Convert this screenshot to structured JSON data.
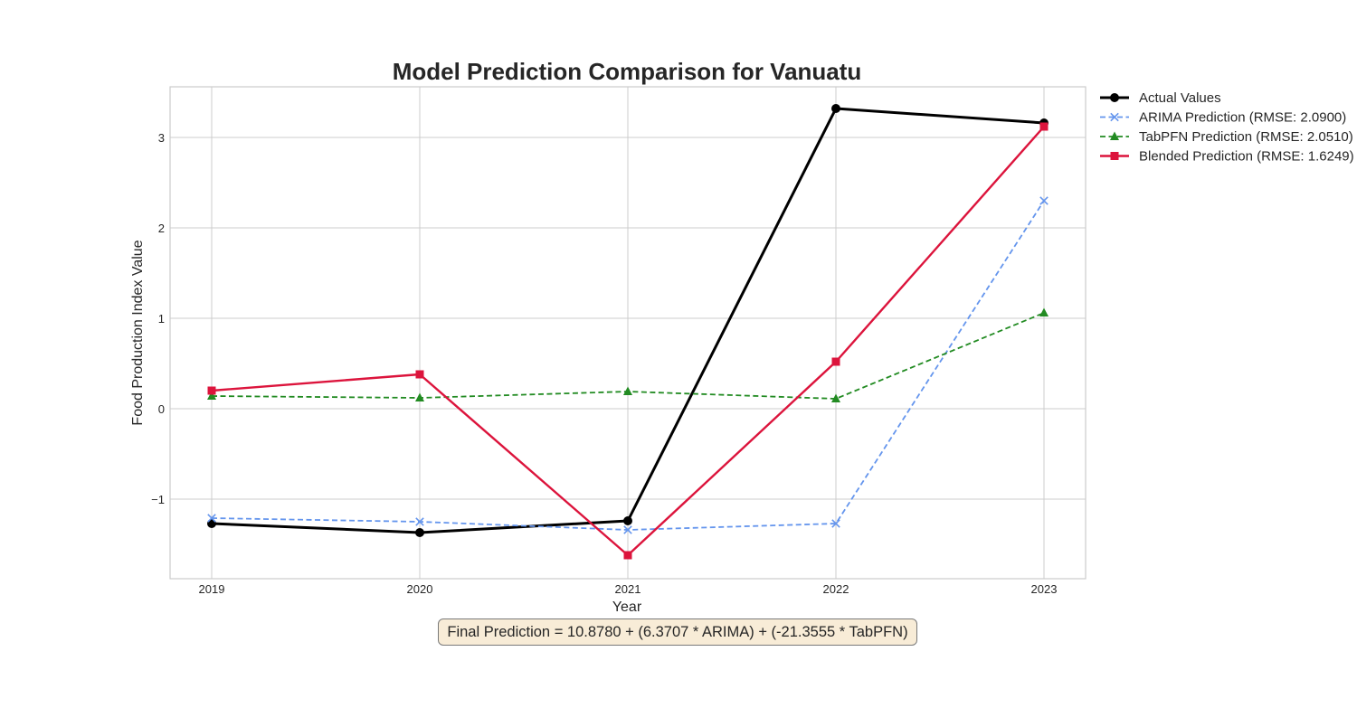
{
  "chart_data": {
    "type": "line",
    "title": "Model Prediction Comparison for Vanuatu",
    "xlabel": "Year",
    "ylabel": "Food Production Index Value",
    "x": [
      2019,
      2020,
      2021,
      2022,
      2023
    ],
    "x_tick_labels": [
      "2019",
      "2020",
      "2021",
      "2022",
      "2023"
    ],
    "y_ticks": [
      -1,
      0,
      1,
      2,
      3
    ],
    "y_tick_labels": [
      "−1",
      "0",
      "1",
      "2",
      "3"
    ],
    "xlim": [
      2018.8,
      2023.2
    ],
    "ylim": [
      -1.88,
      3.56
    ],
    "grid": true,
    "legend_position": "outside top-right",
    "series": [
      {
        "name": "Actual Values",
        "values": [
          -1.27,
          -1.37,
          -1.24,
          3.32,
          3.16
        ],
        "color": "#000000",
        "marker": "circle",
        "dashed": false
      },
      {
        "name": "ARIMA Prediction (RMSE: 2.0900)",
        "values": [
          -1.21,
          -1.25,
          -1.34,
          -1.27,
          2.3
        ],
        "color": "#6495ed",
        "marker": "x",
        "dashed": true
      },
      {
        "name": "TabPFN Prediction (RMSE: 2.0510)",
        "values": [
          0.14,
          0.12,
          0.19,
          0.11,
          1.06
        ],
        "color": "#228b22",
        "marker": "triangle",
        "dashed": true
      },
      {
        "name": "Blended Prediction (RMSE: 1.6249)",
        "values": [
          0.2,
          0.38,
          -1.62,
          0.52,
          3.12
        ],
        "color": "#dc143c",
        "marker": "square",
        "dashed": false
      }
    ]
  },
  "annotation": {
    "formula": "Final Prediction = 10.8780 + (6.3707 * ARIMA) + (-21.3555 * TabPFN)"
  }
}
